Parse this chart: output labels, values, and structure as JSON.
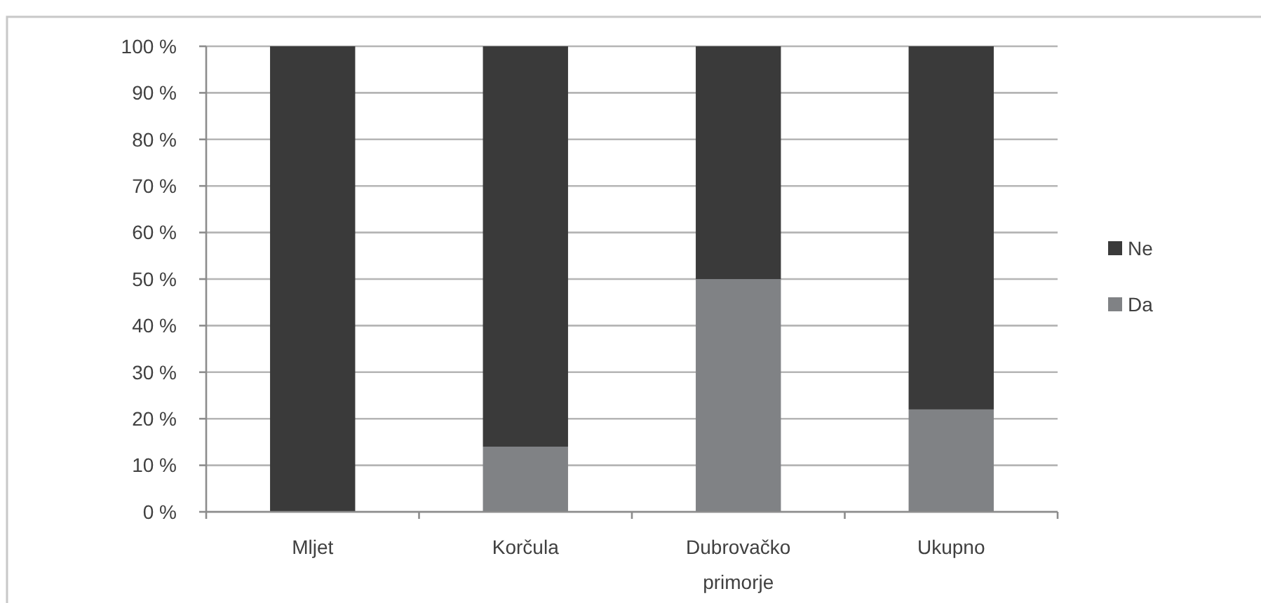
{
  "chart_data": {
    "type": "bar",
    "stacked": true,
    "categories": [
      "Mljet",
      "Korčula",
      "Dubrovačko primorje",
      "Ukupno"
    ],
    "series": [
      {
        "name": "Da",
        "color": "#808285",
        "values": [
          0,
          14,
          50,
          22
        ]
      },
      {
        "name": "Ne",
        "color": "#3a3a3a",
        "values": [
          100,
          86,
          50,
          78
        ]
      }
    ],
    "ylim": [
      0,
      100
    ],
    "yticks": [
      {
        "value": 0,
        "label": "0 %"
      },
      {
        "value": 10,
        "label": "10 %"
      },
      {
        "value": 20,
        "label": "20 %"
      },
      {
        "value": 30,
        "label": "30 %"
      },
      {
        "value": 40,
        "label": "40 %"
      },
      {
        "value": 50,
        "label": "50 %"
      },
      {
        "value": 60,
        "label": "60 %"
      },
      {
        "value": 70,
        "label": "70 %"
      },
      {
        "value": 80,
        "label": "80 %"
      },
      {
        "value": 90,
        "label": "90 %"
      },
      {
        "value": 100,
        "label": "100 %"
      }
    ],
    "grid": "y",
    "legend": "right"
  }
}
